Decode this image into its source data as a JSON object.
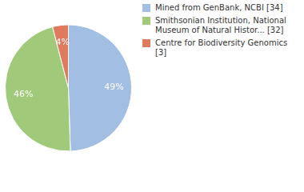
{
  "chart_data": {
    "type": "pie",
    "categories": [
      "Mined from GenBank, NCBI [34]",
      "Smithsonian Institution, National Museum of Natural Histor... [32]",
      "Centre for Biodiversity Genomics [3]"
    ],
    "values": [
      49,
      46,
      4
    ],
    "value_labels": [
      "49%",
      "46%",
      "4%"
    ],
    "colors": [
      "#a2bee3",
      "#a1c97a",
      "#e07a5e"
    ],
    "data_labels": true,
    "legend": "right"
  }
}
